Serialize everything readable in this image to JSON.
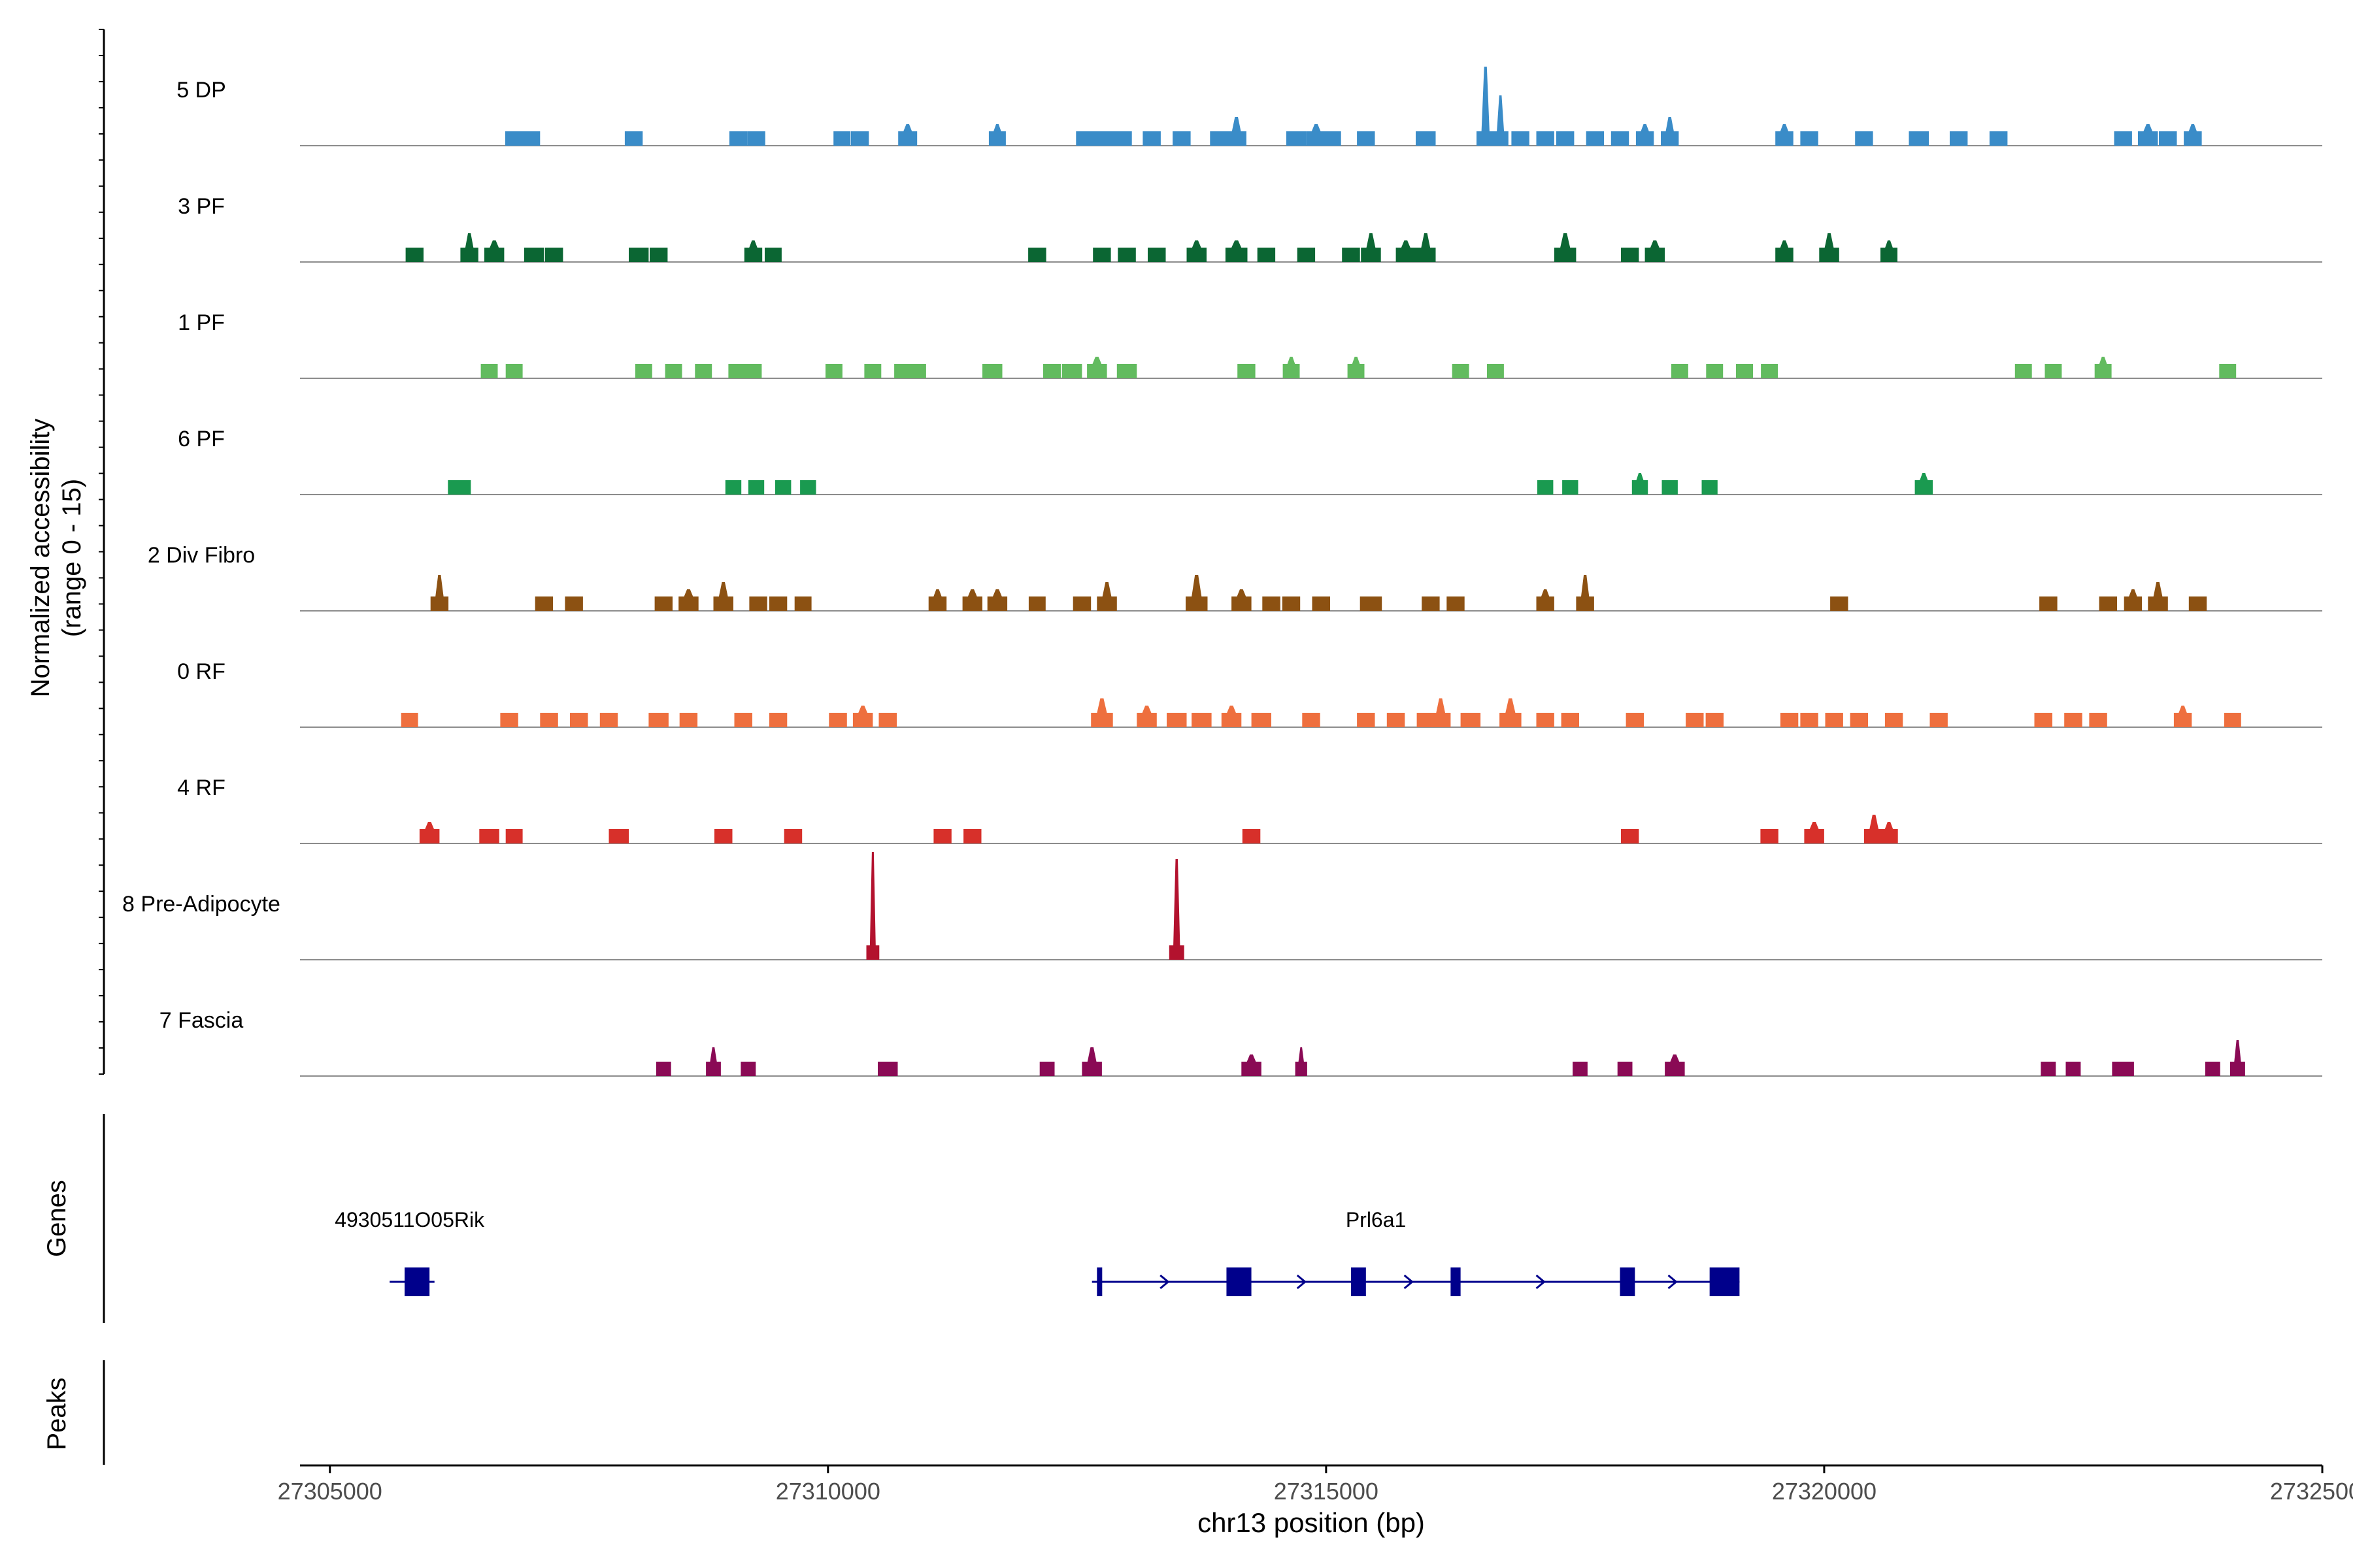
{
  "chart_data": {
    "type": "area",
    "title": "",
    "xlabel": "chr13 position (bp)",
    "ylabel": "Normalized accessibility",
    "ylabel2": "(range 0 - 15)",
    "xlim": [
      27304700,
      27325000
    ],
    "ylim": [
      0,
      15
    ],
    "x_ticks": [
      27305000,
      27310000,
      27315000,
      27320000,
      27325000
    ],
    "x_tick_labels": [
      "27305000",
      "27310000",
      "27315000",
      "27320000",
      "27325000"
    ],
    "series": [
      {
        "name": "5 DP",
        "color": "#3A8CC8",
        "peaks": [
          [
            27306850,
            180,
            2
          ],
          [
            27307020,
            180,
            2
          ],
          [
            27308050,
            180,
            2
          ],
          [
            27309100,
            180,
            2
          ],
          [
            27309280,
            180,
            2
          ],
          [
            27310140,
            170,
            2
          ],
          [
            27310320,
            180,
            2
          ],
          [
            27310800,
            190,
            3
          ],
          [
            27311700,
            170,
            3
          ],
          [
            27312580,
            180,
            2
          ],
          [
            27312750,
            220,
            2
          ],
          [
            27312950,
            200,
            2
          ],
          [
            27313250,
            180,
            2
          ],
          [
            27313550,
            180,
            2
          ],
          [
            27313920,
            170,
            2
          ],
          [
            27314100,
            200,
            4
          ],
          [
            27314700,
            200,
            2
          ],
          [
            27314900,
            200,
            3
          ],
          [
            27315050,
            200,
            2
          ],
          [
            27315400,
            180,
            2
          ],
          [
            27316000,
            200,
            2
          ],
          [
            27316600,
            180,
            11
          ],
          [
            27316750,
            160,
            7
          ],
          [
            27316950,
            180,
            2
          ],
          [
            27317200,
            180,
            2
          ],
          [
            27317400,
            180,
            2
          ],
          [
            27317700,
            180,
            2
          ],
          [
            27317950,
            180,
            2
          ],
          [
            27318200,
            180,
            3
          ],
          [
            27318450,
            180,
            4
          ],
          [
            27319600,
            180,
            3
          ],
          [
            27319850,
            180,
            2
          ],
          [
            27320400,
            180,
            2
          ],
          [
            27320950,
            200,
            2
          ],
          [
            27321350,
            180,
            2
          ],
          [
            27321750,
            180,
            2
          ],
          [
            27323000,
            180,
            2
          ],
          [
            27323250,
            200,
            3
          ],
          [
            27323450,
            180,
            2
          ],
          [
            27323700,
            180,
            3
          ]
        ],
        "max_value": 11
      },
      {
        "name": "3 PF",
        "color": "#0B6633",
        "peaks": [
          [
            27305850,
            180,
            2
          ],
          [
            27306400,
            180,
            4
          ],
          [
            27306650,
            200,
            3
          ],
          [
            27307050,
            200,
            2
          ],
          [
            27307250,
            180,
            2
          ],
          [
            27308100,
            200,
            2
          ],
          [
            27308300,
            180,
            2
          ],
          [
            27309250,
            180,
            3
          ],
          [
            27309450,
            170,
            2
          ],
          [
            27312100,
            180,
            2
          ],
          [
            27312750,
            180,
            2
          ],
          [
            27313000,
            180,
            2
          ],
          [
            27313300,
            180,
            2
          ],
          [
            27313700,
            200,
            3
          ],
          [
            27314100,
            220,
            3
          ],
          [
            27314400,
            180,
            2
          ],
          [
            27314800,
            180,
            2
          ],
          [
            27315250,
            180,
            2
          ],
          [
            27315450,
            200,
            4
          ],
          [
            27315800,
            200,
            3
          ],
          [
            27316000,
            200,
            4
          ],
          [
            27317400,
            220,
            4
          ],
          [
            27318050,
            180,
            2
          ],
          [
            27318300,
            200,
            3
          ],
          [
            27319600,
            180,
            3
          ],
          [
            27320050,
            200,
            4
          ],
          [
            27320650,
            170,
            3
          ]
        ],
        "max_value": 4
      },
      {
        "name": "1 PF",
        "color": "#62BB5F",
        "peaks": [
          [
            27306600,
            170,
            2
          ],
          [
            27306850,
            170,
            2
          ],
          [
            27308150,
            170,
            2
          ],
          [
            27308450,
            170,
            2
          ],
          [
            27308750,
            170,
            2
          ],
          [
            27309100,
            200,
            2
          ],
          [
            27309250,
            170,
            2
          ],
          [
            27310060,
            170,
            2
          ],
          [
            27310450,
            170,
            2
          ],
          [
            27310750,
            170,
            2
          ],
          [
            27310900,
            170,
            2
          ],
          [
            27311650,
            200,
            2
          ],
          [
            27312250,
            180,
            2
          ],
          [
            27312450,
            200,
            2
          ],
          [
            27312700,
            200,
            3
          ],
          [
            27313000,
            200,
            2
          ],
          [
            27314200,
            180,
            2
          ],
          [
            27314650,
            170,
            3
          ],
          [
            27315300,
            170,
            3
          ],
          [
            27316350,
            170,
            2
          ],
          [
            27316700,
            170,
            2
          ],
          [
            27318550,
            170,
            2
          ],
          [
            27318900,
            170,
            2
          ],
          [
            27319200,
            170,
            2
          ],
          [
            27319450,
            170,
            2
          ],
          [
            27322000,
            170,
            2
          ],
          [
            27322300,
            170,
            2
          ],
          [
            27322800,
            170,
            3
          ],
          [
            27324050,
            170,
            2
          ]
        ],
        "max_value": 3
      },
      {
        "name": "6 PF",
        "color": "#1A9A50",
        "peaks": [
          [
            27306300,
            230,
            2
          ],
          [
            27309050,
            160,
            2
          ],
          [
            27309280,
            160,
            2
          ],
          [
            27309550,
            160,
            2
          ],
          [
            27309800,
            160,
            2
          ],
          [
            27317200,
            160,
            2
          ],
          [
            27317450,
            160,
            2
          ],
          [
            27318150,
            160,
            3
          ],
          [
            27318450,
            160,
            2
          ],
          [
            27318850,
            160,
            2
          ],
          [
            27321000,
            180,
            3
          ]
        ],
        "max_value": 3
      },
      {
        "name": "2 Div Fibro",
        "color": "#8C5112",
        "peaks": [
          [
            27306100,
            180,
            5
          ],
          [
            27307150,
            180,
            2
          ],
          [
            27307450,
            180,
            2
          ],
          [
            27308350,
            180,
            2
          ],
          [
            27308600,
            200,
            3
          ],
          [
            27308950,
            200,
            4
          ],
          [
            27309300,
            180,
            2
          ],
          [
            27309500,
            180,
            2
          ],
          [
            27309750,
            170,
            2
          ],
          [
            27311100,
            180,
            3
          ],
          [
            27311450,
            200,
            3
          ],
          [
            27311700,
            200,
            3
          ],
          [
            27312100,
            170,
            2
          ],
          [
            27312550,
            180,
            2
          ],
          [
            27312800,
            200,
            4
          ],
          [
            27313700,
            220,
            5
          ],
          [
            27314150,
            200,
            3
          ],
          [
            27314450,
            180,
            2
          ],
          [
            27314650,
            180,
            2
          ],
          [
            27314950,
            180,
            2
          ],
          [
            27315450,
            220,
            2
          ],
          [
            27316050,
            180,
            2
          ],
          [
            27316300,
            180,
            2
          ],
          [
            27317200,
            180,
            3
          ],
          [
            27317600,
            180,
            5
          ],
          [
            27320150,
            180,
            2
          ],
          [
            27322250,
            180,
            2
          ],
          [
            27322850,
            180,
            2
          ],
          [
            27323100,
            180,
            3
          ],
          [
            27323350,
            200,
            4
          ],
          [
            27323750,
            180,
            2
          ]
        ],
        "max_value": 5
      },
      {
        "name": "0 RF",
        "color": "#EE6F3E",
        "peaks": [
          [
            27305800,
            170,
            2
          ],
          [
            27306800,
            180,
            2
          ],
          [
            27307200,
            180,
            2
          ],
          [
            27307500,
            180,
            2
          ],
          [
            27307800,
            180,
            2
          ],
          [
            27308300,
            200,
            2
          ],
          [
            27308600,
            180,
            2
          ],
          [
            27309150,
            180,
            2
          ],
          [
            27309500,
            180,
            2
          ],
          [
            27310100,
            180,
            2
          ],
          [
            27310350,
            200,
            3
          ],
          [
            27310600,
            180,
            2
          ],
          [
            27312750,
            220,
            4
          ],
          [
            27313200,
            200,
            3
          ],
          [
            27313500,
            200,
            2
          ],
          [
            27313750,
            200,
            2
          ],
          [
            27314050,
            200,
            3
          ],
          [
            27314350,
            200,
            2
          ],
          [
            27314850,
            180,
            2
          ],
          [
            27315400,
            180,
            2
          ],
          [
            27315700,
            180,
            2
          ],
          [
            27316000,
            180,
            2
          ],
          [
            27316150,
            200,
            4
          ],
          [
            27316450,
            200,
            2
          ],
          [
            27316850,
            220,
            4
          ],
          [
            27317200,
            180,
            2
          ],
          [
            27317450,
            180,
            2
          ],
          [
            27318100,
            180,
            2
          ],
          [
            27318700,
            180,
            2
          ],
          [
            27318900,
            180,
            2
          ],
          [
            27319650,
            180,
            2
          ],
          [
            27319850,
            180,
            2
          ],
          [
            27320100,
            180,
            2
          ],
          [
            27320350,
            180,
            2
          ],
          [
            27320700,
            180,
            2
          ],
          [
            27321150,
            180,
            2
          ],
          [
            27322200,
            180,
            2
          ],
          [
            27322500,
            180,
            2
          ],
          [
            27322750,
            180,
            2
          ],
          [
            27323600,
            180,
            3
          ],
          [
            27324100,
            170,
            2
          ]
        ],
        "max_value": 4
      },
      {
        "name": "4 RF",
        "color": "#D7302A",
        "peaks": [
          [
            27306000,
            200,
            3
          ],
          [
            27306600,
            200,
            2
          ],
          [
            27306850,
            170,
            2
          ],
          [
            27307900,
            200,
            2
          ],
          [
            27308950,
            180,
            2
          ],
          [
            27309650,
            180,
            2
          ],
          [
            27311150,
            180,
            2
          ],
          [
            27311450,
            180,
            2
          ],
          [
            27314250,
            180,
            2
          ],
          [
            27318050,
            180,
            2
          ],
          [
            27319450,
            180,
            2
          ],
          [
            27319900,
            200,
            3
          ],
          [
            27320500,
            200,
            4
          ],
          [
            27320650,
            180,
            3
          ]
        ],
        "max_value": 4
      },
      {
        "name": "8 Pre-Adipocyte",
        "color": "#B3122E",
        "peaks": [
          [
            27310450,
            130,
            15
          ],
          [
            27313500,
            150,
            14
          ]
        ],
        "max_value": 15
      },
      {
        "name": "7 Fascia",
        "color": "#8A0A55",
        "peaks": [
          [
            27308350,
            150,
            2
          ],
          [
            27308850,
            150,
            4
          ],
          [
            27309200,
            150,
            2
          ],
          [
            27310600,
            200,
            2
          ],
          [
            27312200,
            150,
            2
          ],
          [
            27312650,
            200,
            4
          ],
          [
            27314250,
            200,
            3
          ],
          [
            27314750,
            120,
            4
          ],
          [
            27317550,
            150,
            2
          ],
          [
            27318000,
            150,
            2
          ],
          [
            27318500,
            200,
            3
          ],
          [
            27322250,
            150,
            2
          ],
          [
            27322500,
            150,
            2
          ],
          [
            27323000,
            220,
            2
          ],
          [
            27323900,
            150,
            2
          ],
          [
            27324150,
            150,
            5
          ]
        ],
        "max_value": 5
      }
    ],
    "genes": [
      {
        "name": "4930511O05Rik",
        "start": 27305600,
        "end": 27306050,
        "strand": "+",
        "exons": [
          [
            27305750,
            27306000
          ]
        ],
        "label_x": 27305800
      },
      {
        "name": "Prl6a1",
        "start": 27312650,
        "end": 27319150,
        "strand": "+",
        "exons": [
          [
            27312700,
            27312750
          ],
          [
            27314000,
            27314250
          ],
          [
            27315250,
            27315400
          ],
          [
            27316250,
            27316350
          ],
          [
            27317950,
            27318100
          ],
          [
            27318850,
            27319150
          ]
        ],
        "label_x": 27315500
      }
    ],
    "panel_labels": {
      "genes": "Genes",
      "peaks": "Peaks"
    }
  }
}
